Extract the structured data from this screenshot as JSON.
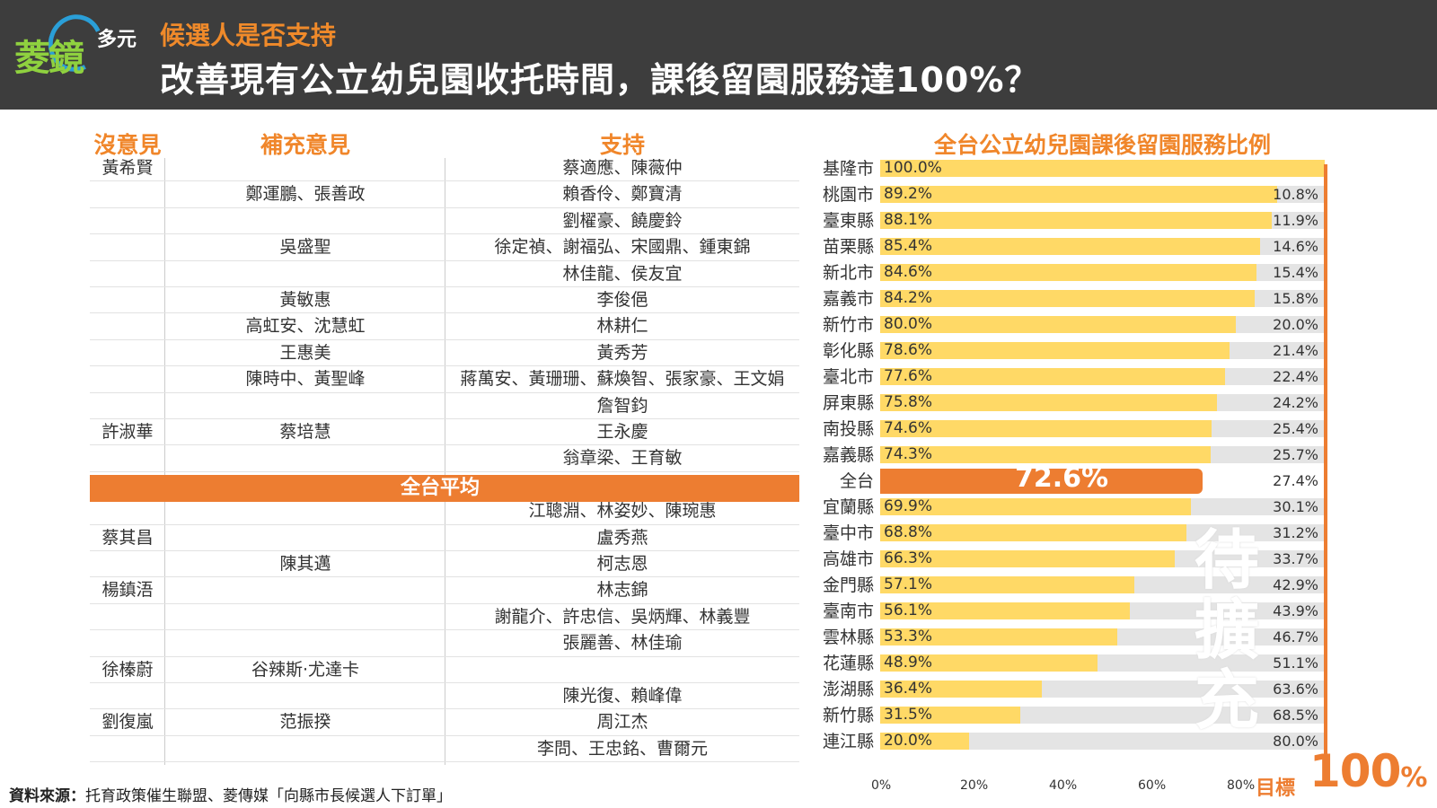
{
  "header": {
    "logo_main": "菱鏡",
    "logo_sub": "多元",
    "subtitle": "候選人是否支持",
    "title": "改善現有公立幼兒園收托時間，課後留園服務達100%？"
  },
  "table": {
    "headers": [
      "沒意見",
      "補充意見",
      "支持"
    ],
    "rows_top": [
      [
        "黃希賢",
        "",
        "蔡適應、陳薇仲"
      ],
      [
        "",
        "鄭運鵬、張善政",
        "賴香伶、鄭寶清"
      ],
      [
        "",
        "",
        "劉櫂豪、饒慶鈴"
      ],
      [
        "",
        "吳盛聖",
        "徐定禎、謝福弘、宋國鼎、鍾東錦"
      ],
      [
        "",
        "",
        "林佳龍、侯友宜"
      ],
      [
        "",
        "黃敏惠",
        "李俊俋"
      ],
      [
        "",
        "高虹安、沈慧虹",
        "林耕仁"
      ],
      [
        "",
        "王惠美",
        "黃秀芳"
      ],
      [
        "",
        "陳時中、黃聖峰",
        "蔣萬安、黃珊珊、蘇煥智、張家豪、王文娟"
      ],
      [
        "",
        "",
        "詹智鈞"
      ],
      [
        "許淑華",
        "蔡培慧",
        "王永慶"
      ],
      [
        "",
        "",
        "翁章梁、王育敏"
      ]
    ],
    "avg_label": "全台平均",
    "rows_bottom": [
      [
        "",
        "",
        "江聰淵、林姿妙、陳琬惠"
      ],
      [
        "蔡其昌",
        "",
        "盧秀燕"
      ],
      [
        "",
        "陳其邁",
        "柯志恩"
      ],
      [
        "楊鎮浯",
        "",
        "林志錦"
      ],
      [
        "",
        "",
        "謝龍介、許忠信、吳炳輝、林義豐"
      ],
      [
        "",
        "",
        "張麗善、林佳瑜"
      ],
      [
        "徐榛蔚",
        "谷辣斯·尤達卡",
        ""
      ],
      [
        "",
        "",
        "陳光復、賴峰偉"
      ],
      [
        "劉復嵐",
        "范振揆",
        "周江杰"
      ],
      [
        "",
        "",
        "李問、王忠銘、曹爾元"
      ]
    ]
  },
  "chart_data": {
    "type": "bar",
    "orientation": "horizontal",
    "stacked": true,
    "title": "全台公立幼兒園課後留園服務比例",
    "categories": [
      "基隆市",
      "桃園市",
      "臺東縣",
      "苗栗縣",
      "新北市",
      "嘉義市",
      "新竹市",
      "彰化縣",
      "臺北市",
      "屏東縣",
      "南投縣",
      "嘉義縣",
      "全台",
      "宜蘭縣",
      "臺中市",
      "高雄市",
      "金門縣",
      "臺南市",
      "雲林縣",
      "花蓮縣",
      "澎湖縣",
      "新竹縣",
      "連江縣"
    ],
    "series": [
      {
        "values": [
          100.0,
          89.2,
          88.1,
          85.4,
          84.6,
          84.2,
          80.0,
          78.6,
          77.6,
          75.8,
          74.6,
          74.3,
          72.6,
          69.9,
          68.8,
          66.3,
          57.1,
          56.1,
          53.3,
          48.9,
          36.4,
          31.5,
          20.0
        ],
        "labels": [
          "100.0%",
          "89.2%",
          "88.1%",
          "85.4%",
          "84.6%",
          "84.2%",
          "80.0%",
          "78.6%",
          "77.6%",
          "75.8%",
          "74.6%",
          "74.3%",
          "72.6%",
          "69.9%",
          "68.8%",
          "66.3%",
          "57.1%",
          "56.1%",
          "53.3%",
          "48.9%",
          "36.4%",
          "31.5%",
          "20.0%"
        ],
        "color": "#ffd966",
        "highlight_color": "#ed7d31"
      },
      {
        "values": [
          0,
          10.8,
          11.9,
          14.6,
          15.4,
          15.8,
          20.0,
          21.4,
          22.4,
          24.2,
          25.4,
          25.7,
          27.4,
          30.1,
          31.2,
          33.7,
          42.9,
          43.9,
          46.7,
          51.1,
          63.6,
          68.5,
          80.0
        ],
        "labels": [
          "",
          "10.8%",
          "11.9%",
          "14.6%",
          "15.4%",
          "15.8%",
          "20.0%",
          "21.4%",
          "22.4%",
          "24.2%",
          "25.4%",
          "25.7%",
          "27.4%",
          "30.1%",
          "31.2%",
          "33.7%",
          "42.9%",
          "43.9%",
          "46.7%",
          "51.1%",
          "63.6%",
          "68.5%",
          "80.0%"
        ],
        "color": "#e4e4e4"
      }
    ],
    "xlim": [
      0,
      100
    ],
    "xticks": [
      "0%",
      "20%",
      "40%",
      "60%",
      "80%"
    ],
    "annotation_pending": "待擴充",
    "goal_label": "目標",
    "goal_value": "100",
    "goal_unit": "%",
    "goal_color": "#ed7d31"
  },
  "footer": {
    "source_label": "資料來源：",
    "source_text": "托育政策催生聯盟、菱傳媒「向縣市長候選人下訂單」"
  }
}
